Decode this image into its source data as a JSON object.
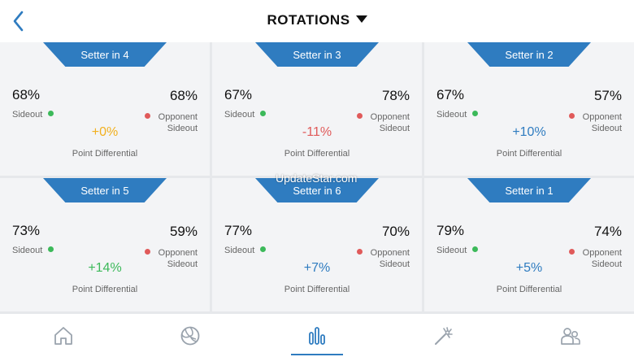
{
  "header": {
    "title": "ROTATIONS"
  },
  "cards": [
    {
      "setter": "Setter in 4",
      "sideout": "68%",
      "opp_sideout": "68%",
      "diff": "+0%",
      "diff_color": "#f2b01e"
    },
    {
      "setter": "Setter in 3",
      "sideout": "67%",
      "opp_sideout": "78%",
      "diff": "-11%",
      "diff_color": "#e05a5a"
    },
    {
      "setter": "Setter in 2",
      "sideout": "67%",
      "opp_sideout": "57%",
      "diff": "+10%",
      "diff_color": "#2f7cc0"
    },
    {
      "setter": "Setter in 5",
      "sideout": "73%",
      "opp_sideout": "59%",
      "diff": "+14%",
      "diff_color": "#3cb95a"
    },
    {
      "setter": "Setter in 6",
      "sideout": "77%",
      "opp_sideout": "70%",
      "diff": "+7%",
      "diff_color": "#2f7cc0"
    },
    {
      "setter": "Setter in 1",
      "sideout": "79%",
      "opp_sideout": "74%",
      "diff": "+5%",
      "diff_color": "#2f7cc0"
    }
  ],
  "labels": {
    "sideout": "Sideout",
    "opponent": "Opponent",
    "opponent_sideout": "Sideout",
    "point_differential": "Point Differential"
  },
  "watermark": "UpdateStar.com",
  "tabbar": {
    "items": [
      "home-icon",
      "volleyball-icon",
      "stats-icon",
      "magic-wand-icon",
      "team-icon"
    ],
    "active_index": 2
  },
  "colors": {
    "accent": "#2f7cc0",
    "inactive_icon": "#9aa3ad",
    "sideout_dot": "#3cb95a",
    "opponent_dot": "#e05a5a"
  }
}
